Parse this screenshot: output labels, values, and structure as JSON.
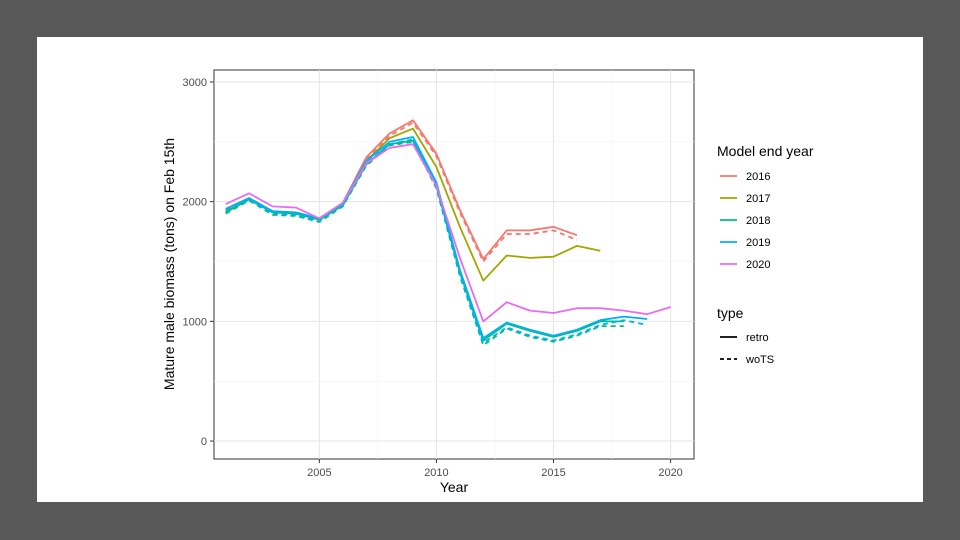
{
  "chart_data": {
    "type": "line",
    "xlabel": "Year",
    "ylabel": "Mature male biomass (tons) on Feb 15th",
    "xlim": [
      2000.5,
      2021
    ],
    "ylim": [
      -150,
      3100
    ],
    "x_ticks": [
      2005,
      2010,
      2015,
      2020
    ],
    "y_ticks": [
      0,
      1000,
      2000,
      3000
    ],
    "grid": true,
    "legend_placement": "right",
    "legend": {
      "color_title": "Model end year",
      "linetype_title": "type",
      "linetypes": [
        {
          "label": "retro",
          "dash": "solid"
        },
        {
          "label": "woTS",
          "dash": "dashed"
        }
      ]
    },
    "series": [
      {
        "name": "2016",
        "type": "retro",
        "color": "#F8766D",
        "x": [
          2001,
          2002,
          2003,
          2004,
          2005,
          2006,
          2007,
          2008,
          2009,
          2010,
          2011,
          2012,
          2013,
          2014,
          2015,
          2016
        ],
        "values": [
          1920,
          2030,
          1920,
          1900,
          1860,
          1990,
          2370,
          2570,
          2680,
          2400,
          1930,
          1520,
          1760,
          1760,
          1790,
          1720
        ]
      },
      {
        "name": "2016",
        "type": "woTS",
        "color": "#F8766D",
        "x": [
          2001,
          2002,
          2003,
          2004,
          2005,
          2006,
          2007,
          2008,
          2009,
          2010,
          2011,
          2012,
          2013,
          2014,
          2015,
          2016
        ],
        "values": [
          1910,
          2020,
          1910,
          1890,
          1850,
          1980,
          2350,
          2550,
          2660,
          2380,
          1910,
          1500,
          1730,
          1730,
          1760,
          1680
        ]
      },
      {
        "name": "2017",
        "type": "retro",
        "color": "#A3A500",
        "x": [
          2001,
          2002,
          2003,
          2004,
          2005,
          2006,
          2007,
          2008,
          2009,
          2010,
          2011,
          2012,
          2013,
          2014,
          2015,
          2016,
          2017
        ],
        "values": [
          1910,
          2020,
          1910,
          1900,
          1850,
          1980,
          2340,
          2530,
          2610,
          2290,
          1790,
          1340,
          1550,
          1530,
          1540,
          1630,
          1590
        ]
      },
      {
        "name": "2018",
        "type": "retro",
        "color": "#00BF7D",
        "x": [
          2001,
          2002,
          2003,
          2004,
          2005,
          2006,
          2007,
          2008,
          2009,
          2010,
          2011,
          2012,
          2013,
          2014,
          2015,
          2016,
          2017,
          2018
        ],
        "values": [
          1910,
          2020,
          1910,
          1900,
          1850,
          1970,
          2310,
          2480,
          2510,
          2130,
          1410,
          840,
          980,
          920,
          870,
          920,
          1000,
          1000
        ]
      },
      {
        "name": "2018",
        "type": "woTS",
        "color": "#00BF7D",
        "x": [
          2001,
          2002,
          2003,
          2004,
          2005,
          2006,
          2007,
          2008,
          2009,
          2010,
          2011,
          2012,
          2013,
          2014,
          2015,
          2016,
          2017,
          2018
        ],
        "values": [
          1900,
          2010,
          1890,
          1880,
          1830,
          1960,
          2300,
          2470,
          2500,
          2110,
          1380,
          800,
          940,
          870,
          830,
          880,
          960,
          960
        ]
      },
      {
        "name": "2019",
        "type": "retro",
        "color": "#00B0F6",
        "x": [
          2001,
          2002,
          2003,
          2004,
          2005,
          2006,
          2007,
          2008,
          2009,
          2010,
          2011,
          2012,
          2013,
          2014,
          2015,
          2016,
          2017,
          2018,
          2019
        ],
        "values": [
          1940,
          2030,
          1920,
          1910,
          1860,
          1990,
          2340,
          2500,
          2540,
          2160,
          1430,
          860,
          990,
          930,
          880,
          930,
          1010,
          1040,
          1020
        ]
      },
      {
        "name": "2019",
        "type": "woTS",
        "color": "#00B0F6",
        "x": [
          2001,
          2002,
          2003,
          2004,
          2005,
          2006,
          2007,
          2008,
          2009,
          2010,
          2011,
          2012,
          2013,
          2014,
          2015,
          2016,
          2017,
          2018,
          2019
        ],
        "values": [
          1930,
          2020,
          1900,
          1890,
          1840,
          1970,
          2320,
          2480,
          2520,
          2130,
          1400,
          820,
          950,
          880,
          840,
          890,
          970,
          1010,
          970
        ]
      },
      {
        "name": "2020",
        "type": "retro",
        "color": "#E76BF3",
        "x": [
          2001,
          2002,
          2003,
          2004,
          2005,
          2006,
          2007,
          2008,
          2009,
          2010,
          2011,
          2012,
          2013,
          2014,
          2015,
          2016,
          2017,
          2018,
          2019,
          2020
        ],
        "values": [
          1980,
          2070,
          1960,
          1950,
          1860,
          1990,
          2320,
          2450,
          2480,
          2130,
          1530,
          1000,
          1160,
          1090,
          1070,
          1110,
          1110,
          1090,
          1060,
          1120
        ]
      }
    ]
  }
}
